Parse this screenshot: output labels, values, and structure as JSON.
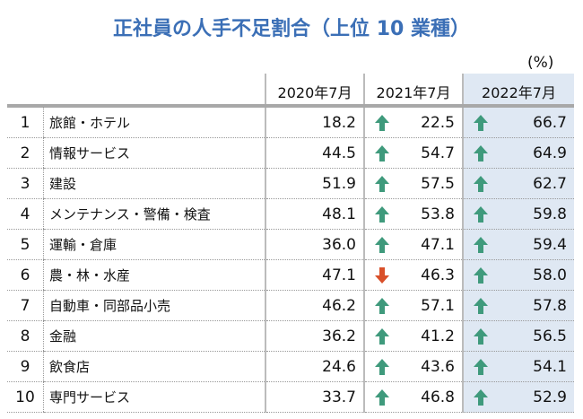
{
  "title": "正社員の人手不足割合（上位 10 業種）",
  "unit": "(%)",
  "columns": [
    "2020年7月",
    "2021年7月",
    "2022年7月"
  ],
  "colors": {
    "up": "#3f9a7c",
    "down": "#d9502a",
    "highlight": "#dfe8f3",
    "title": "#3b6fb6"
  },
  "rows": [
    {
      "rank": "1",
      "name": "旅館・ホテル",
      "v2020": "18.2",
      "v2021": "22.5",
      "t2021": "up",
      "v2022": "66.7",
      "t2022": "up"
    },
    {
      "rank": "2",
      "name": "情報サービス",
      "v2020": "44.5",
      "v2021": "54.7",
      "t2021": "up",
      "v2022": "64.9",
      "t2022": "up"
    },
    {
      "rank": "3",
      "name": "建設",
      "v2020": "51.9",
      "v2021": "57.5",
      "t2021": "up",
      "v2022": "62.7",
      "t2022": "up"
    },
    {
      "rank": "4",
      "name": "メンテナンス・警備・検査",
      "v2020": "48.1",
      "v2021": "53.8",
      "t2021": "up",
      "v2022": "59.8",
      "t2022": "up"
    },
    {
      "rank": "5",
      "name": "運輸・倉庫",
      "v2020": "36.0",
      "v2021": "47.1",
      "t2021": "up",
      "v2022": "59.4",
      "t2022": "up"
    },
    {
      "rank": "6",
      "name": "農・林・水産",
      "v2020": "47.1",
      "v2021": "46.3",
      "t2021": "down",
      "v2022": "58.0",
      "t2022": "up"
    },
    {
      "rank": "7",
      "name": "自動車・同部品小売",
      "v2020": "46.2",
      "v2021": "57.1",
      "t2021": "up",
      "v2022": "57.8",
      "t2022": "up"
    },
    {
      "rank": "8",
      "name": "金融",
      "v2020": "36.2",
      "v2021": "41.2",
      "t2021": "up",
      "v2022": "56.5",
      "t2022": "up"
    },
    {
      "rank": "9",
      "name": "飲食店",
      "v2020": "24.6",
      "v2021": "43.6",
      "t2021": "up",
      "v2022": "54.1",
      "t2022": "up"
    },
    {
      "rank": "10",
      "name": "専門サービス",
      "v2020": "33.7",
      "v2021": "46.8",
      "t2021": "up",
      "v2022": "52.9",
      "t2022": "up"
    }
  ]
}
